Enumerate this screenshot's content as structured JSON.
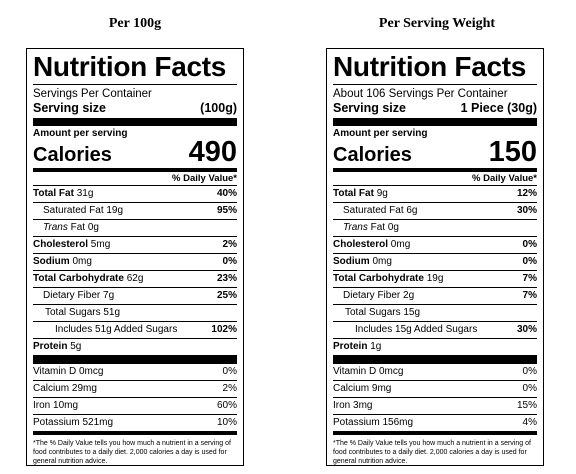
{
  "columns": [
    {
      "heading": "Per 100g",
      "title": "Nutrition Facts",
      "servings_per_container": "Servings Per Container",
      "serving_size_label": "Serving size",
      "serving_size_value": "(100g)",
      "amount_per_serving": "Amount per serving",
      "calories_label": "Calories",
      "calories_value": "490",
      "daily_value_header": "% Daily Value*",
      "total_fat": {
        "label": "Total Fat",
        "amount": "31g",
        "dv": "40%"
      },
      "saturated_fat": {
        "label": "Saturated Fat 19g",
        "dv": "95%"
      },
      "trans_fat": {
        "label_italic": "Trans",
        "label_rest": " Fat 0g"
      },
      "cholesterol": {
        "label": "Cholesterol",
        "amount": "5mg",
        "dv": "2%"
      },
      "sodium": {
        "label": "Sodium",
        "amount": "0mg",
        "dv": "0%"
      },
      "total_carbohydrate": {
        "label": "Total Carbohydrate",
        "amount": "62g",
        "dv": "23%"
      },
      "dietary_fiber": {
        "label": "Dietary Fiber 7g",
        "dv": "25%"
      },
      "total_sugars": {
        "label": "Total Sugars 51g"
      },
      "added_sugars": {
        "label": "Includes 51g Added Sugars",
        "dv": "102%"
      },
      "protein": {
        "label": "Protein",
        "amount": "5g"
      },
      "vitamin_d": {
        "label": "Vitamin D 0mcg",
        "dv": "0%"
      },
      "calcium": {
        "label": "Calcium 29mg",
        "dv": "2%"
      },
      "iron": {
        "label": "Iron 10mg",
        "dv": "60%"
      },
      "potassium": {
        "label": "Potassium 521mg",
        "dv": "10%"
      },
      "footnote": "*The % Daily Value tells you how much a nutrient in a serving of food contributes to a daily diet. 2,000 calories a day is used for general nutrition advice."
    },
    {
      "heading": "Per Serving Weight",
      "title": "Nutrition Facts",
      "servings_per_container": "About 106 Servings Per Container",
      "serving_size_label": "Serving size",
      "serving_size_value": "1 Piece (30g)",
      "amount_per_serving": "Amount per serving",
      "calories_label": "Calories",
      "calories_value": "150",
      "daily_value_header": "% Daily Value*",
      "total_fat": {
        "label": "Total Fat",
        "amount": "9g",
        "dv": "12%"
      },
      "saturated_fat": {
        "label": "Saturated Fat 6g",
        "dv": "30%"
      },
      "trans_fat": {
        "label_italic": "Trans",
        "label_rest": " Fat 0g"
      },
      "cholesterol": {
        "label": "Cholesterol",
        "amount": "0mg",
        "dv": "0%"
      },
      "sodium": {
        "label": "Sodium",
        "amount": "0mg",
        "dv": "0%"
      },
      "total_carbohydrate": {
        "label": "Total Carbohydrate",
        "amount": "19g",
        "dv": "7%"
      },
      "dietary_fiber": {
        "label": "Dietary Fiber 2g",
        "dv": "7%"
      },
      "total_sugars": {
        "label": "Total Sugars 15g"
      },
      "added_sugars": {
        "label": "Includes 15g Added Sugars",
        "dv": "30%"
      },
      "protein": {
        "label": "Protein",
        "amount": "1g"
      },
      "vitamin_d": {
        "label": "Vitamin D 0mcg",
        "dv": "0%"
      },
      "calcium": {
        "label": "Calcium 9mg",
        "dv": "0%"
      },
      "iron": {
        "label": "Iron 3mg",
        "dv": "15%"
      },
      "potassium": {
        "label": "Potassium 156mg",
        "dv": "4%"
      },
      "footnote": "*The % Daily Value tells you how much a nutrient in a serving of food contributes to a daily diet. 2,000 calories a day is used for general nutrition advice."
    }
  ]
}
